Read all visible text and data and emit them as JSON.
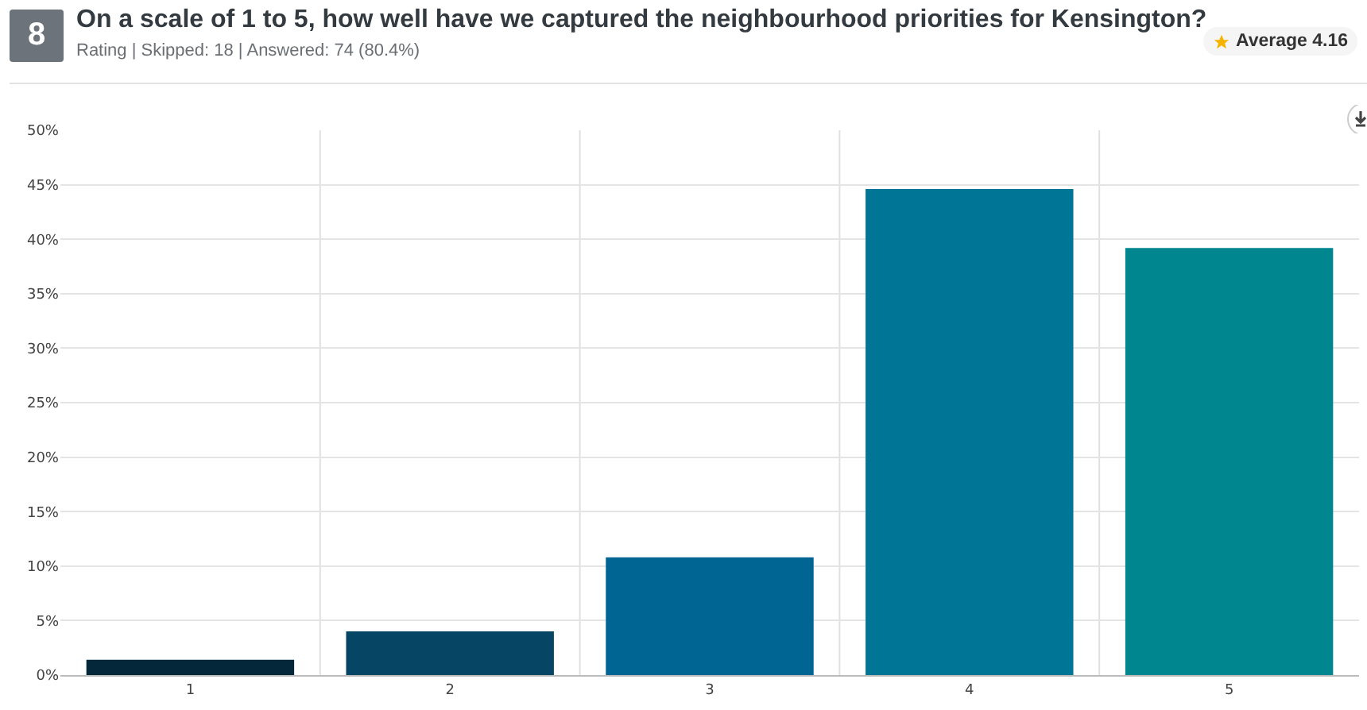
{
  "chart_data": {
    "type": "bar",
    "title": "On a scale of 1 to 5, how well have we captured the neighbourhood priorities for Kensington?",
    "subtitle": "Rating | Skipped: 18 | Answered: 74 (80.4%)",
    "annotations": [
      "8",
      "Average 4.16"
    ],
    "categories": [
      "1",
      "2",
      "3",
      "4",
      "5"
    ],
    "values": [
      1.4,
      4,
      10.8,
      44.6,
      39.2
    ],
    "colors": [
      "#04283a",
      "#064563",
      "#006593",
      "#007596",
      "#00868f"
    ],
    "ylim": [
      0,
      50
    ],
    "yticks": [
      {
        "value": 0,
        "label": "0%"
      },
      {
        "value": 5,
        "label": "5%"
      },
      {
        "value": 10,
        "label": "10%"
      },
      {
        "value": 15,
        "label": "15%"
      },
      {
        "value": 20,
        "label": "20%"
      },
      {
        "value": 25,
        "label": "25%"
      },
      {
        "value": 30,
        "label": "30%"
      },
      {
        "value": 35,
        "label": "35%"
      },
      {
        "value": 40,
        "label": "40%"
      },
      {
        "value": 45,
        "label": "45%"
      },
      {
        "value": 50,
        "label": "50%"
      }
    ],
    "grid": true
  }
}
